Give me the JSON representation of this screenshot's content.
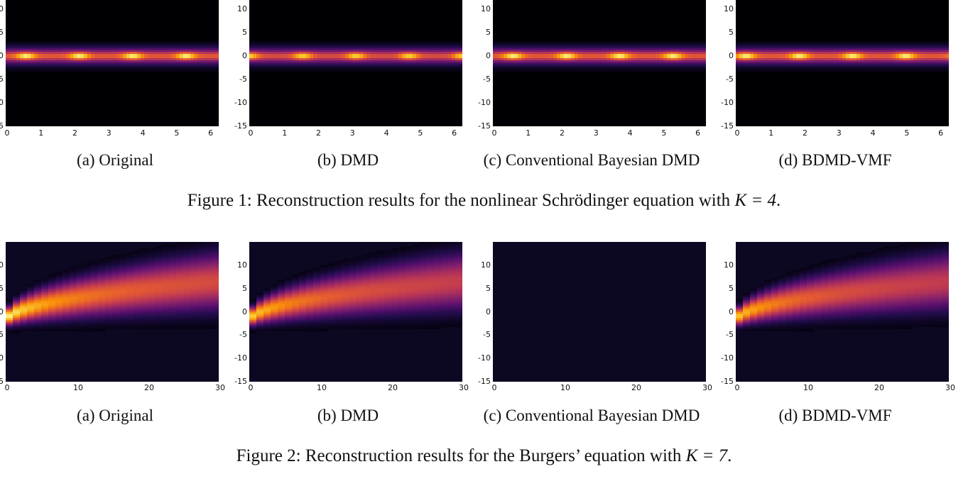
{
  "figures": [
    {
      "id": "fig1",
      "caption_prefix": "Figure 1: Reconstruction results for the nonlinear Schrödinger equation with ",
      "caption_math": "K = 4",
      "caption_suffix": ".",
      "panels": [
        {
          "label": "(a) Original",
          "type": "nls",
          "variant": "original"
        },
        {
          "label": "(b) DMD",
          "type": "nls",
          "variant": "dmd"
        },
        {
          "label": "(c) Conventional Bayesian DMD",
          "type": "nls",
          "variant": "cbdmd"
        },
        {
          "label": "(d) BDMD-VMF",
          "type": "nls",
          "variant": "vmf"
        }
      ],
      "xticks": [
        "0",
        "1",
        "2",
        "3",
        "4",
        "5",
        "6"
      ],
      "xrange": [
        0,
        6.28
      ],
      "yticks": [
        "10",
        "5",
        "0",
        "-5",
        "-10",
        "-15"
      ],
      "yrange": [
        -15,
        15
      ]
    },
    {
      "id": "fig2",
      "caption_prefix": "Figure 2: Reconstruction results for the Burgers’ equation with ",
      "caption_math": "K = 7",
      "caption_suffix": ".",
      "panels": [
        {
          "label": "(a) Original",
          "type": "burgers",
          "variant": "original"
        },
        {
          "label": "(b) DMD",
          "type": "burgers",
          "variant": "dmd"
        },
        {
          "label": "(c) Conventional Bayesian DMD",
          "type": "burgers",
          "variant": "cbdmd"
        },
        {
          "label": "(d) BDMD-VMF",
          "type": "burgers",
          "variant": "vmf"
        }
      ],
      "xticks": [
        "0",
        "10",
        "20",
        "30"
      ],
      "xrange": [
        0,
        30
      ],
      "yticks": [
        "10",
        "5",
        "0",
        "-5",
        "-10",
        "-15"
      ],
      "yrange": [
        -15,
        15
      ]
    }
  ],
  "colors": {
    "background_dark": "#000004",
    "burgers_dark": "#0c0822",
    "colormap": "inferno"
  }
}
